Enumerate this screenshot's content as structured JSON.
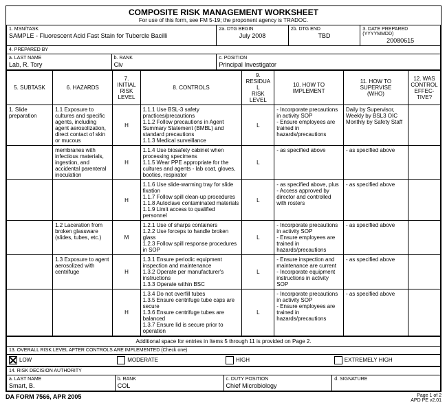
{
  "title": "COMPOSITE RISK MANAGEMENT WORKSHEET",
  "subtitle": "For use of this form, see FM 5-19; the proponent agency is TRADOC.",
  "hdr": {
    "msn_lbl": "1. MSN/TASK",
    "msn": "SAMPLE - Fluorescent Acid Fast Stain for Tubercle Bacilli",
    "begin_lbl": "2a. DTG BEGIN",
    "begin": "July 2008",
    "end_lbl": "2b. DTG END",
    "end": "TBD",
    "prep_lbl": "3. DATE PREPARED (YYYYMMDD)",
    "prep": "20080615",
    "prepby_lbl": "4. PREPARED BY",
    "ln_lbl": "a. LAST NAME",
    "ln": "Lab, R. Tory",
    "rk_lbl": "b. RANK",
    "rk": "Civ",
    "pos_lbl": "c. POSITION",
    "pos": "Principal Investigator"
  },
  "cols": {
    "c5": "5. SUBTASK",
    "c6": "6. HAZARDS",
    "c7": "7.\nINITIAL\nRISK LEVEL",
    "c8": "8. CONTROLS",
    "c9": "9.\nRESIDUAL\nRISK LEVEL",
    "c10": "10. HOW TO IMPLEMENT",
    "c11": "11. HOW TO SUPERVISE\n(WHO)",
    "c12": "12. WAS\nCONTROL\nEFFEC-\nTIVE?"
  },
  "rows": [
    {
      "sub": "1. Slide preparation",
      "haz": "1.1 Exposure to cultures and specific agents, including agent aerosolization, direct contact of skin or mucous",
      "irl": "H",
      "ctl": "1.1.1 Use BSL-3 safety practices/precautions\n1.1.2 Follow precautions in Agent Summary Statement (BMBL) and standard precautions\n1.1.3 Medical surveillance",
      "rrl": "L",
      "imp": "- Incorporate precautions in activity SOP\n- Ensure employees are trained in hazards/precautions",
      "sup": "Daily by Supervisor,\nWeekly by BSL3 OIC\nMonthly by Safety Staff"
    },
    {
      "sub": "",
      "haz": "membranes with infectious materials, ingestion, and accidental parenteral inoculation",
      "irl": "H",
      "ctl": "1.1.4 Use biosafety cabinet when processing specimens\n1.1.5 Wear PPE appropriate for the cultures and agents - lab coat, gloves, booties, respirator",
      "rrl": "L",
      "imp": "- as specified above",
      "sup": "- as specified above"
    },
    {
      "sub": "",
      "haz": "",
      "irl": "H",
      "ctl": "1.1.6 Use slide-warming tray for slide fixation\n1.1.7 Follow spill clean-up procedures\n1.1.8 Autoclave contaminated materials\n1.1.9 Limit access to qualified personnel",
      "rrl": "L",
      "imp": "- as specified above, plus\n- Access approved by director and controlled with rosters",
      "sup": "- as specified above"
    },
    {
      "sub": "",
      "haz": "1.2 Laceration from broken glassware (slides, tubes, etc.)",
      "irl": "M",
      "ctl": "1.2.1 Use of sharps containers\n1.2.2 Use forceps to handle broken glass\n1.2.3 Follow spill response procedures in SOP",
      "rrl": "L",
      "imp": "- Incorporate precautions in activity SOP\n- Ensure employees are trained in hazards/precautions",
      "sup": "- as specified above"
    },
    {
      "sub": "",
      "haz": "1.3 Exposure to agent aerosolized with centrifuge",
      "irl": "H",
      "ctl": "1.3.1 Ensure periodic equipment inspection and maintenance\n1.3.2 Operate per manufacturer's instructions\n1.3.3 Operate within BSC",
      "rrl": "L",
      "imp": "- Ensure inspection and maintenance are current\n- Incorporate equipment instructions in activity SOP",
      "sup": "- as specified above"
    },
    {
      "sub": "",
      "haz": "",
      "irl": "H",
      "ctl": "1.3.4 Do not overfill tubes\n1.3.5 Ensure centrifuge tube caps are secure\n1.3.6 Ensure centrifuge tubes are balanced\n1.3.7 Ensure lid is secure prior to operation",
      "rrl": "L",
      "imp": "- Incorporate precautions in activity SOP\n- Ensure employees are trained in hazards/precautions",
      "sup": "- as specified above"
    }
  ],
  "addl": "Additional space for entries in Items 5 through 11 is provided on Page 2.",
  "s13": {
    "lbl": "13. OVERALL RISK LEVEL AFTER CONTROLS ARE IMPLEMENTED (Check one)",
    "low": "LOW",
    "mod": "MODERATE",
    "high": "HIGH",
    "ext": "EXTREMELY HIGH"
  },
  "s14": {
    "lbl": "14. RISK DECISION AUTHORITY",
    "ln_lbl": "a. LAST NAME",
    "ln": "Smart, B.",
    "rk_lbl": "b. RANK",
    "rk": "COL",
    "dp_lbl": "c. DUTY POSITION",
    "dp": "Chief Microbiology",
    "sig_lbl": "d. SIGNATURE"
  },
  "form": "DA FORM 7566, APR 2005",
  "pg": "Page 1 of 2",
  "apd": "APD PE v2.01"
}
